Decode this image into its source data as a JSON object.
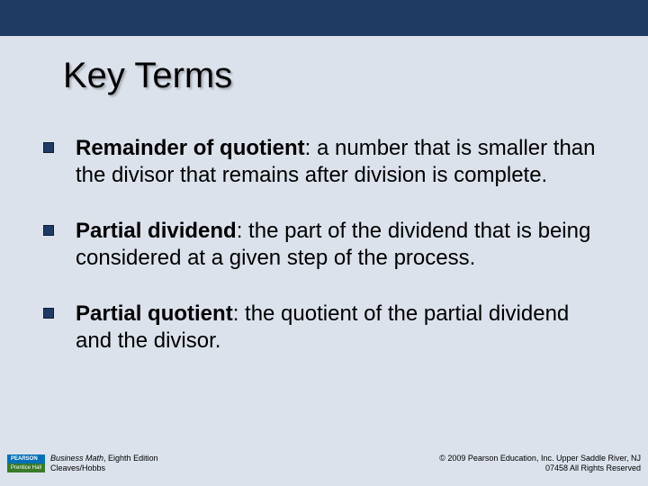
{
  "colors": {
    "header_bg": "#1f3a63",
    "content_bg": "#dbe2ec",
    "bullet_fill": "#1f3a63",
    "bullet_border": "#0d1f38",
    "pearson_top_bg": "#0071b8",
    "pearson_bottom_bg": "#3a7a2a"
  },
  "title": "Key Terms",
  "terms": [
    {
      "name": "Remainder of quotient",
      "definition": ":  a number that is smaller than the divisor that remains after division is complete."
    },
    {
      "name": "Partial dividend",
      "definition": ": the part of the dividend that is being considered at a given step of the process."
    },
    {
      "name": "Partial quotient",
      "definition": ":  the quotient of the partial dividend and the divisor."
    }
  ],
  "footer": {
    "logo_top": "PEARSON",
    "logo_bottom": "Prentice Hall",
    "book_title": "Business Math",
    "book_edition": ", Eighth Edition",
    "authors": "Cleaves/Hobbs",
    "copyright_line1": "© 2009 Pearson Education, Inc. Upper Saddle River, NJ",
    "copyright_line2": "07458  All Rights Reserved"
  }
}
